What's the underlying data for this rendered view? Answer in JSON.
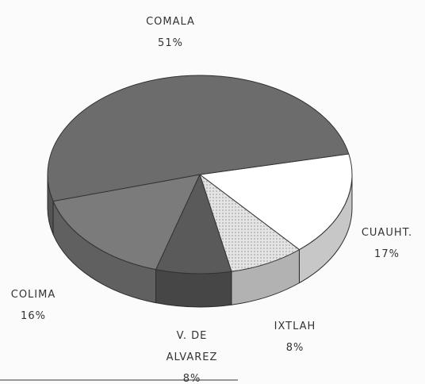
{
  "chart_data": {
    "type": "pie",
    "categories": [
      "CUAUHT.",
      "IXTLAH",
      "V. DE ALVAREZ",
      "COLIMA",
      "COMALA"
    ],
    "values": [
      17,
      8,
      8,
      16,
      51
    ],
    "value_labels": [
      "17%",
      "8%",
      "8%",
      "16%",
      "51%"
    ],
    "colors": [
      "#ffffff",
      "#e4e4e4",
      "#5a5a5a",
      "#7b7b7b",
      "#6c6c6c"
    ]
  }
}
